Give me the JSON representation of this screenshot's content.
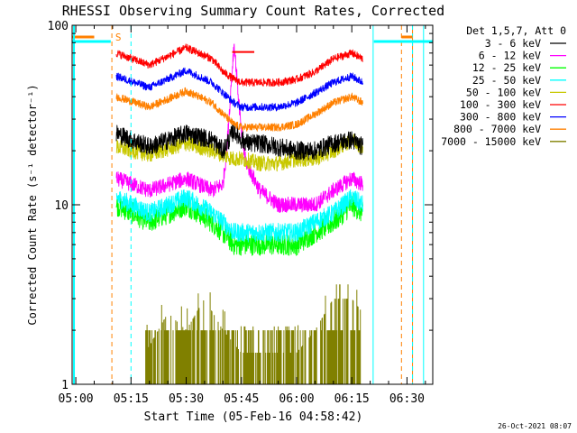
{
  "chart_data": {
    "type": "line",
    "title": "RHESSI Observing Summary Count Rates, Corrected",
    "xlabel": "Start Time (05-Feb-16 04:58:42)",
    "ylabel": "Corrected Count Rate (s⁻¹ detector⁻¹)",
    "timestamp": "26-Oct-2021 08:07",
    "yscale": "log",
    "ylim": [
      1,
      100
    ],
    "xlim_minutes": [
      4.0,
      102.0
    ],
    "x_ticks": [
      {
        "label": "05:00",
        "min": 5
      },
      {
        "label": "05:15",
        "min": 20
      },
      {
        "label": "05:30",
        "min": 35
      },
      {
        "label": "05:45",
        "min": 50
      },
      {
        "label": "06:00",
        "min": 65
      },
      {
        "label": "06:15",
        "min": 80
      },
      {
        "label": "06:30",
        "min": 95
      }
    ],
    "y_ticks": [
      {
        "label": "1",
        "value": 1
      },
      {
        "label": "10",
        "value": 10
      },
      {
        "label": "100",
        "value": 100
      }
    ],
    "legend_header": "Det 1,5,7, Att 0",
    "legend_position": "right",
    "markers": {
      "saa_label": "S",
      "night_lines_min": [
        4.5,
        99.5
      ],
      "dashed_cyan_min": [
        20.0,
        96.5
      ],
      "solid_cyan_min": [
        85.8
      ],
      "dashed_orange_min": [
        14.8,
        93.5
      ],
      "solid_orange_min": [
        96.5
      ]
    },
    "series": [
      {
        "name": "3 - 6 keV",
        "color": "#000000",
        "key": "s1",
        "x": [
          16,
          25,
          35,
          42,
          45,
          48,
          50,
          52,
          55,
          60,
          65,
          70,
          75,
          80,
          83
        ],
        "y": [
          25,
          21,
          25,
          23,
          20,
          26,
          23,
          22,
          22,
          21,
          20,
          20,
          22,
          23,
          21
        ]
      },
      {
        "name": "6 - 12 keV",
        "color": "#ff00ff",
        "key": "s2",
        "x": [
          16,
          25,
          35,
          42,
          45,
          46,
          47,
          48,
          49,
          50,
          51,
          52,
          55,
          60,
          65,
          70,
          75,
          80,
          83
        ],
        "y": [
          14,
          12,
          14,
          12,
          13,
          20,
          40,
          80,
          45,
          25,
          18,
          16,
          12,
          10,
          10,
          10,
          12,
          14,
          13
        ]
      },
      {
        "name": "12 - 25 keV",
        "color": "#00ff00",
        "key": "s3",
        "x": [
          16,
          25,
          35,
          42,
          45,
          48,
          50,
          55,
          60,
          65,
          70,
          75,
          80,
          83
        ],
        "y": [
          10,
          8,
          10,
          8,
          7,
          6,
          6,
          6,
          6,
          6,
          7,
          8,
          10,
          9
        ]
      },
      {
        "name": "25 - 50 keV",
        "color": "#00ffff",
        "key": "s4",
        "x": [
          16,
          25,
          35,
          42,
          45,
          48,
          50,
          55,
          60,
          65,
          70,
          75,
          80,
          83
        ],
        "y": [
          11,
          9,
          11,
          9,
          8,
          7,
          7,
          7,
          7,
          7,
          8,
          9,
          11,
          10
        ]
      },
      {
        "name": "50 - 100 keV",
        "color": "#c8c800",
        "key": "s5",
        "x": [
          16,
          25,
          35,
          42,
          45,
          48,
          50,
          55,
          60,
          65,
          70,
          75,
          80,
          83
        ],
        "y": [
          21,
          19,
          22,
          20,
          19,
          18,
          18,
          17,
          17,
          18,
          18,
          20,
          23,
          21
        ]
      },
      {
        "name": "100 - 300 keV",
        "color": "#ff0000",
        "key": "s6",
        "x": [
          16,
          25,
          35,
          42,
          45,
          48,
          50,
          55,
          60,
          65,
          70,
          75,
          80,
          83
        ],
        "y": [
          70,
          60,
          75,
          65,
          55,
          50,
          48,
          48,
          48,
          50,
          55,
          65,
          70,
          65
        ]
      },
      {
        "name": "300 - 800 keV",
        "color": "#0000ff",
        "key": "s7",
        "x": [
          16,
          25,
          35,
          42,
          45,
          48,
          50,
          55,
          60,
          65,
          70,
          75,
          80,
          83
        ],
        "y": [
          52,
          45,
          56,
          48,
          42,
          37,
          35,
          35,
          35,
          37,
          42,
          48,
          52,
          48
        ]
      },
      {
        "name": "800 - 7000 keV",
        "color": "#ff8000",
        "key": "s8",
        "x": [
          16,
          25,
          35,
          42,
          45,
          48,
          50,
          55,
          60,
          65,
          70,
          75,
          80,
          83
        ],
        "y": [
          40,
          35,
          43,
          37,
          32,
          28,
          27,
          27,
          27,
          28,
          32,
          37,
          40,
          37
        ]
      },
      {
        "name": "7000 - 15000 keV",
        "color": "#808000",
        "key": "s9",
        "x": [
          24,
          30,
          35,
          40,
          45,
          50,
          55,
          60,
          65,
          70,
          75,
          80,
          83
        ],
        "y": [
          1.5,
          2.5,
          2,
          3,
          2,
          1.5,
          1.5,
          1.5,
          1.5,
          2,
          3,
          3,
          2.5
        ]
      }
    ]
  }
}
